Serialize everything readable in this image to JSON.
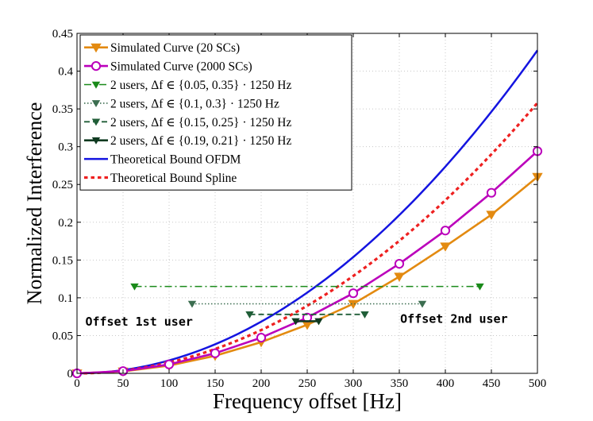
{
  "chart_data": {
    "type": "line",
    "title": "",
    "xlabel": "Frequency offset [Hz]",
    "ylabel": "Normalized Interference",
    "xlim": [
      0,
      500
    ],
    "ylim": [
      0,
      0.45
    ],
    "xticks": [
      "0",
      "50",
      "100",
      "150",
      "200",
      "250",
      "300",
      "350",
      "400",
      "450",
      "500"
    ],
    "yticks": [
      "0",
      "0.05",
      "0.1",
      "0.15",
      "0.2",
      "0.25",
      "0.3",
      "0.35",
      "0.4",
      "0.45"
    ],
    "grid": true,
    "legend_position": "top-left",
    "series": [
      {
        "name": "Simulated Curve (20 SCs)",
        "style": "solid",
        "marker": "triangle-down",
        "color": "#e38a10",
        "x": [
          0,
          50,
          100,
          150,
          200,
          250,
          300,
          350,
          400,
          450,
          500
        ],
        "y": [
          0,
          0.0025,
          0.0103,
          0.0232,
          0.0413,
          0.0643,
          0.092,
          0.128,
          0.168,
          0.21,
          0.26
        ]
      },
      {
        "name": "Simulated Curve (2000 SCs)",
        "style": "solid",
        "marker": "circle",
        "color": "#bb00bb",
        "x": [
          0,
          50,
          100,
          150,
          200,
          250,
          300,
          350,
          400,
          450,
          500
        ],
        "y": [
          0,
          0.0029,
          0.0118,
          0.0266,
          0.0472,
          0.0738,
          0.106,
          0.145,
          0.189,
          0.239,
          0.294
        ]
      },
      {
        "name": "2 users, Δf ∈ {0.05, 0.35} · 1250 Hz",
        "style": "dashdot",
        "marker": "triangle-down",
        "color": "#1a8a1a",
        "x": [
          62.5,
          437.5
        ],
        "y": [
          0.115,
          0.115
        ]
      },
      {
        "name": "2 users, Δf ∈ {0.1, 0.3} · 1250 Hz",
        "style": "dotted",
        "marker": "triangle-down",
        "color": "#3c6e50",
        "x": [
          125,
          375
        ],
        "y": [
          0.092,
          0.092
        ]
      },
      {
        "name": "2 users, Δf ∈ {0.15, 0.25} · 1250 Hz",
        "style": "dashed",
        "marker": "triangle-down",
        "color": "#205e38",
        "x": [
          187.5,
          312.5
        ],
        "y": [
          0.078,
          0.078
        ]
      },
      {
        "name": "2 users, Δf ∈ {0.19, 0.21} · 1250 Hz",
        "style": "solid",
        "marker": "triangle-down",
        "color": "#0f3a20",
        "x": [
          237.5,
          262.5
        ],
        "y": [
          0.069,
          0.069
        ]
      },
      {
        "name": "Theoretical Bound OFDM",
        "style": "solid",
        "marker": "none",
        "color": "#1414e0",
        "function": "0.4275*(x/500)^2"
      },
      {
        "name": "Theoretical Bound Spline",
        "style": "dotted-thick",
        "marker": "none",
        "color": "#ee2020",
        "function": "0.358*(x/500)^2"
      }
    ],
    "annotations": [
      {
        "text": "Offset 1st user",
        "x": 9,
        "y": 0.063
      },
      {
        "text": "Offset 2nd user",
        "x": 351,
        "y": 0.067
      }
    ]
  }
}
